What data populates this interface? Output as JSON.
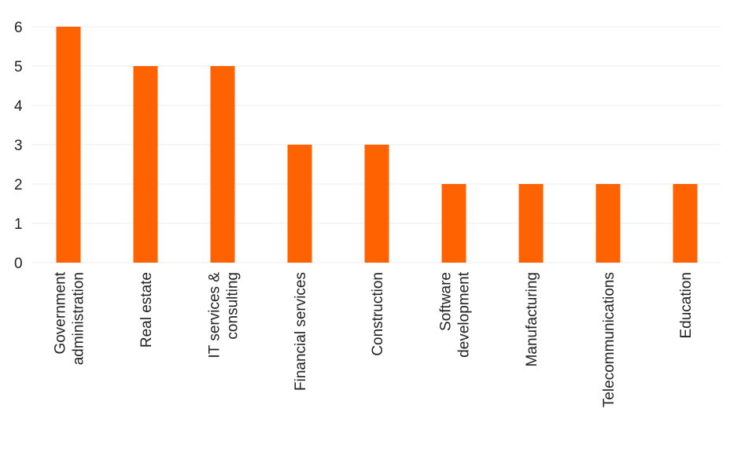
{
  "chart_data": {
    "type": "bar",
    "categories": [
      "Government administration",
      "Real estate",
      "IT services & consulting",
      "Financial services",
      "Construction",
      "Software development",
      "Manufacturing",
      "Telecommunications",
      "Education"
    ],
    "category_label_lines": [
      [
        "Government",
        "administration"
      ],
      [
        "Real estate"
      ],
      [
        "IT services &",
        "consulting"
      ],
      [
        "Financial services"
      ],
      [
        "Construction"
      ],
      [
        "Software",
        "development"
      ],
      [
        "Manufacturing"
      ],
      [
        "Telecommunications"
      ],
      [
        "Education"
      ]
    ],
    "values": [
      6,
      5,
      5,
      3,
      3,
      2,
      2,
      2,
      2
    ],
    "yticks": [
      "0",
      "1",
      "2",
      "3",
      "4",
      "5",
      "6"
    ],
    "ylim": [
      0,
      6
    ],
    "grid": true,
    "colors": {
      "bar": "#ff6200",
      "grid": "#ececec",
      "text": "#222222"
    }
  }
}
